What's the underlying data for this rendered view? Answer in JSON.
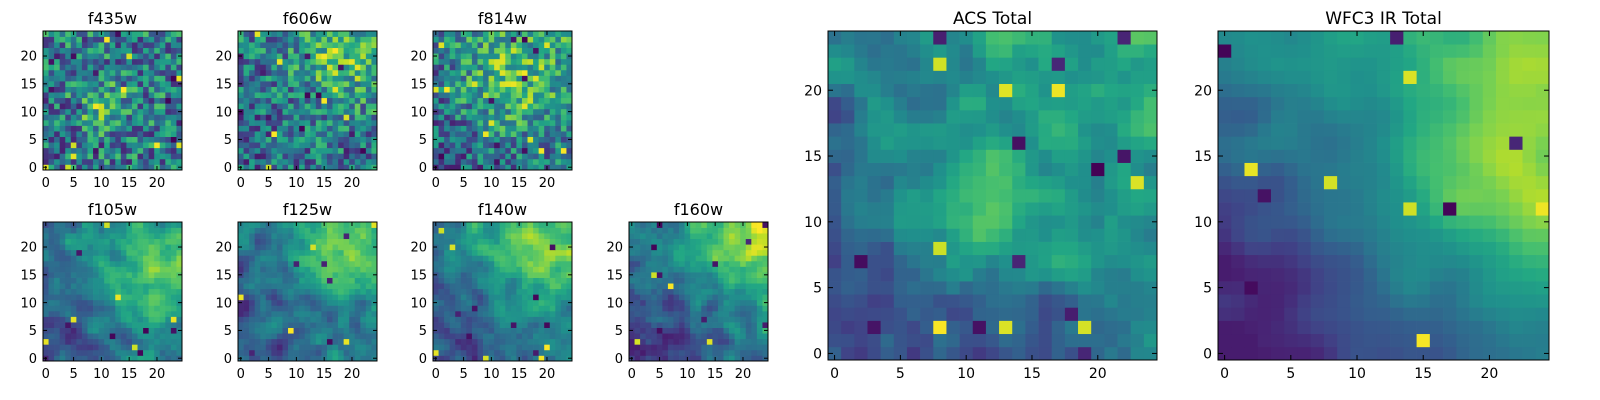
{
  "chart_data": [
    {
      "type": "heatmap",
      "title": "f435w",
      "xlim": [
        0,
        25
      ],
      "ylim": [
        0,
        25
      ],
      "xticks": [
        0,
        5,
        10,
        15,
        20
      ],
      "yticks": [
        0,
        5,
        10,
        15,
        20
      ],
      "colormap": "viridis",
      "seed": 435,
      "smooth": 0,
      "tilt": 0.05,
      "noise": 0.62,
      "dark_pixels": 18,
      "bright_pixels": 10,
      "bright_region": [
        10,
        11,
        3
      ]
    },
    {
      "type": "heatmap",
      "title": "f606w",
      "xlim": [
        0,
        25
      ],
      "ylim": [
        0,
        25
      ],
      "xticks": [
        0,
        5,
        10,
        15,
        20
      ],
      "yticks": [
        0,
        5,
        10,
        15,
        20
      ],
      "colormap": "viridis",
      "seed": 606,
      "smooth": 0,
      "tilt": 0.18,
      "noise": 0.58,
      "dark_pixels": 14,
      "bright_pixels": 8,
      "bright_region": [
        18,
        20,
        5
      ]
    },
    {
      "type": "heatmap",
      "title": "f814w",
      "xlim": [
        0,
        25
      ],
      "ylim": [
        0,
        25
      ],
      "xticks": [
        0,
        5,
        10,
        15,
        20
      ],
      "yticks": [
        0,
        5,
        10,
        15,
        20
      ],
      "colormap": "viridis",
      "seed": 814,
      "smooth": 0,
      "tilt": 0.3,
      "noise": 0.55,
      "dark_pixels": 12,
      "bright_pixels": 12,
      "bright_region": [
        13,
        15,
        6
      ]
    },
    {
      "type": "heatmap",
      "title": "f105w",
      "xlim": [
        0,
        25
      ],
      "ylim": [
        0,
        25
      ],
      "xticks": [
        0,
        5,
        10,
        15,
        20
      ],
      "yticks": [
        0,
        5,
        10,
        15,
        20
      ],
      "colormap": "viridis",
      "seed": 105,
      "smooth": 1,
      "tilt": 0.35,
      "noise": 0.42,
      "dark_pixels": 6,
      "bright_pixels": 6,
      "bright_region": [
        20,
        13,
        6
      ]
    },
    {
      "type": "heatmap",
      "title": "f125w",
      "xlim": [
        0,
        25
      ],
      "ylim": [
        0,
        25
      ],
      "xticks": [
        0,
        5,
        10,
        15,
        20
      ],
      "yticks": [
        0,
        5,
        10,
        15,
        20
      ],
      "colormap": "viridis",
      "seed": 125,
      "smooth": 1,
      "tilt": 0.3,
      "noise": 0.45,
      "dark_pixels": 6,
      "bright_pixels": 5,
      "bright_region": [
        18,
        20,
        6
      ]
    },
    {
      "type": "heatmap",
      "title": "f140w",
      "xlim": [
        0,
        25
      ],
      "ylim": [
        0,
        25
      ],
      "xticks": [
        0,
        5,
        10,
        15,
        20
      ],
      "yticks": [
        0,
        5,
        10,
        15,
        20
      ],
      "colormap": "viridis",
      "seed": 140,
      "smooth": 1,
      "tilt": 0.4,
      "noise": 0.42,
      "dark_pixels": 8,
      "bright_pixels": 6,
      "bright_region": [
        18,
        18,
        6
      ]
    },
    {
      "type": "heatmap",
      "title": "f160w",
      "xlim": [
        0,
        25
      ],
      "ylim": [
        0,
        25
      ],
      "xticks": [
        0,
        5,
        10,
        15,
        20
      ],
      "yticks": [
        0,
        5,
        10,
        15,
        20
      ],
      "colormap": "viridis",
      "seed": 160,
      "smooth": 1,
      "tilt": 0.6,
      "noise": 0.38,
      "dark_pixels": 10,
      "bright_pixels": 4,
      "bright_region": [
        20,
        21,
        6
      ]
    },
    {
      "type": "heatmap",
      "title": "ACS Total",
      "xlim": [
        0,
        25
      ],
      "ylim": [
        0,
        25
      ],
      "xticks": [
        0,
        5,
        10,
        15,
        20
      ],
      "yticks": [
        0,
        5,
        10,
        15,
        20
      ],
      "colormap": "viridis",
      "seed": 999,
      "smooth": 1,
      "tilt": 0.45,
      "noise": 0.34,
      "dark_pixels": 12,
      "bright_pixels": 8,
      "bright_region": [
        11,
        11,
        4
      ]
    },
    {
      "type": "heatmap",
      "title": "WFC3 IR Total",
      "xlim": [
        0,
        25
      ],
      "ylim": [
        0,
        25
      ],
      "xticks": [
        0,
        5,
        10,
        15,
        20
      ],
      "yticks": [
        0,
        5,
        10,
        15,
        20
      ],
      "colormap": "viridis",
      "seed": 3160,
      "smooth": 2,
      "tilt": 0.75,
      "noise": 0.18,
      "dark_pixels": 6,
      "bright_pixels": 6,
      "bright_region": [
        21,
        13,
        5
      ]
    }
  ]
}
